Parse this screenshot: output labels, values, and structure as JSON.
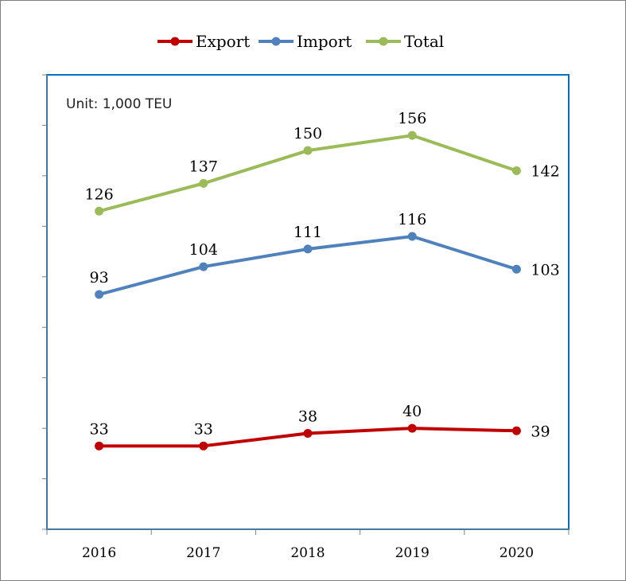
{
  "chart_data": {
    "type": "line",
    "categories": [
      "2016",
      "2017",
      "2018",
      "2019",
      "2020"
    ],
    "unit_note": "Unit: 1,000 TEU",
    "ylim": [
      0,
      180
    ],
    "grid": false,
    "legend_position": "top",
    "series": [
      {
        "name": "Export",
        "color": "#c00000",
        "values": [
          33,
          33,
          38,
          40,
          39
        ]
      },
      {
        "name": "Import",
        "color": "#4f81bd",
        "values": [
          93,
          104,
          111,
          116,
          103
        ]
      },
      {
        "name": "Total",
        "color": "#9bbb59",
        "values": [
          126,
          137,
          150,
          156,
          142
        ]
      }
    ],
    "plot_border_color": "#0070c0"
  }
}
